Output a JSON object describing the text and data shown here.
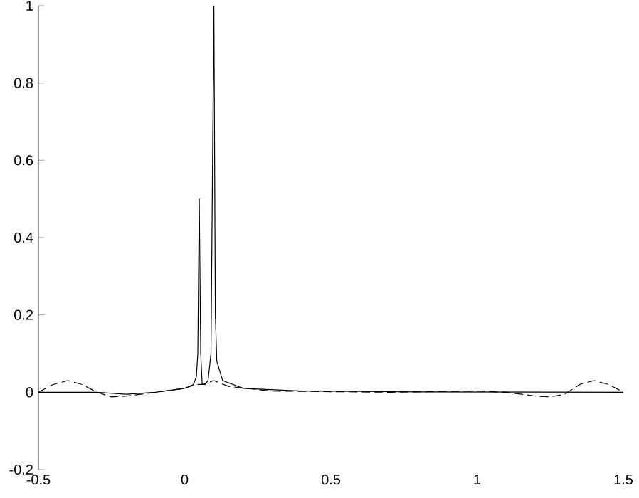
{
  "chart_data": {
    "type": "line",
    "xlim": [
      -0.5,
      1.5
    ],
    "ylim": [
      -0.2,
      1
    ],
    "xticks": [
      -0.5,
      0,
      0.5,
      1,
      1.5
    ],
    "yticks": [
      -0.2,
      0,
      0.2,
      0.4,
      0.6,
      0.8,
      1
    ],
    "marker": "none",
    "series": [
      {
        "color": "#000000",
        "line_style": "solid",
        "x": [
          -0.5,
          -0.4,
          -0.3,
          -0.2,
          -0.1,
          0,
          0.03,
          0.04,
          0.045,
          0.05,
          0.055,
          0.06,
          0.07,
          0.08,
          0.09,
          0.1,
          0.105,
          0.11,
          0.13,
          0.2,
          0.4,
          0.8,
          1.5
        ],
        "values": [
          0,
          0,
          0,
          -0.005,
          0,
          0.01,
          0.02,
          0.04,
          0.1,
          0.5,
          0.1,
          0.02,
          0.02,
          0.03,
          0.1,
          1.0,
          0.2,
          0.08,
          0.03,
          0.01,
          0.003,
          0.001,
          0
        ]
      },
      {
        "color": "#000000",
        "line_style": "dashed",
        "x": [
          -0.5,
          -0.45,
          -0.4,
          -0.35,
          -0.3,
          -0.25,
          -0.2,
          -0.1,
          0,
          0.04,
          0.06,
          0.1,
          0.15,
          0.3,
          0.7,
          1.0,
          1.1,
          1.2,
          1.25,
          1.3,
          1.35,
          1.4,
          1.45,
          1.5
        ],
        "values": [
          0,
          0.02,
          0.03,
          0.02,
          0,
          -0.012,
          -0.01,
          0,
          0.01,
          0.02,
          0.02,
          0.03,
          0.015,
          0.003,
          0,
          0.003,
          0,
          -0.01,
          -0.012,
          -0.005,
          0.02,
          0.03,
          0.02,
          0
        ]
      }
    ]
  }
}
